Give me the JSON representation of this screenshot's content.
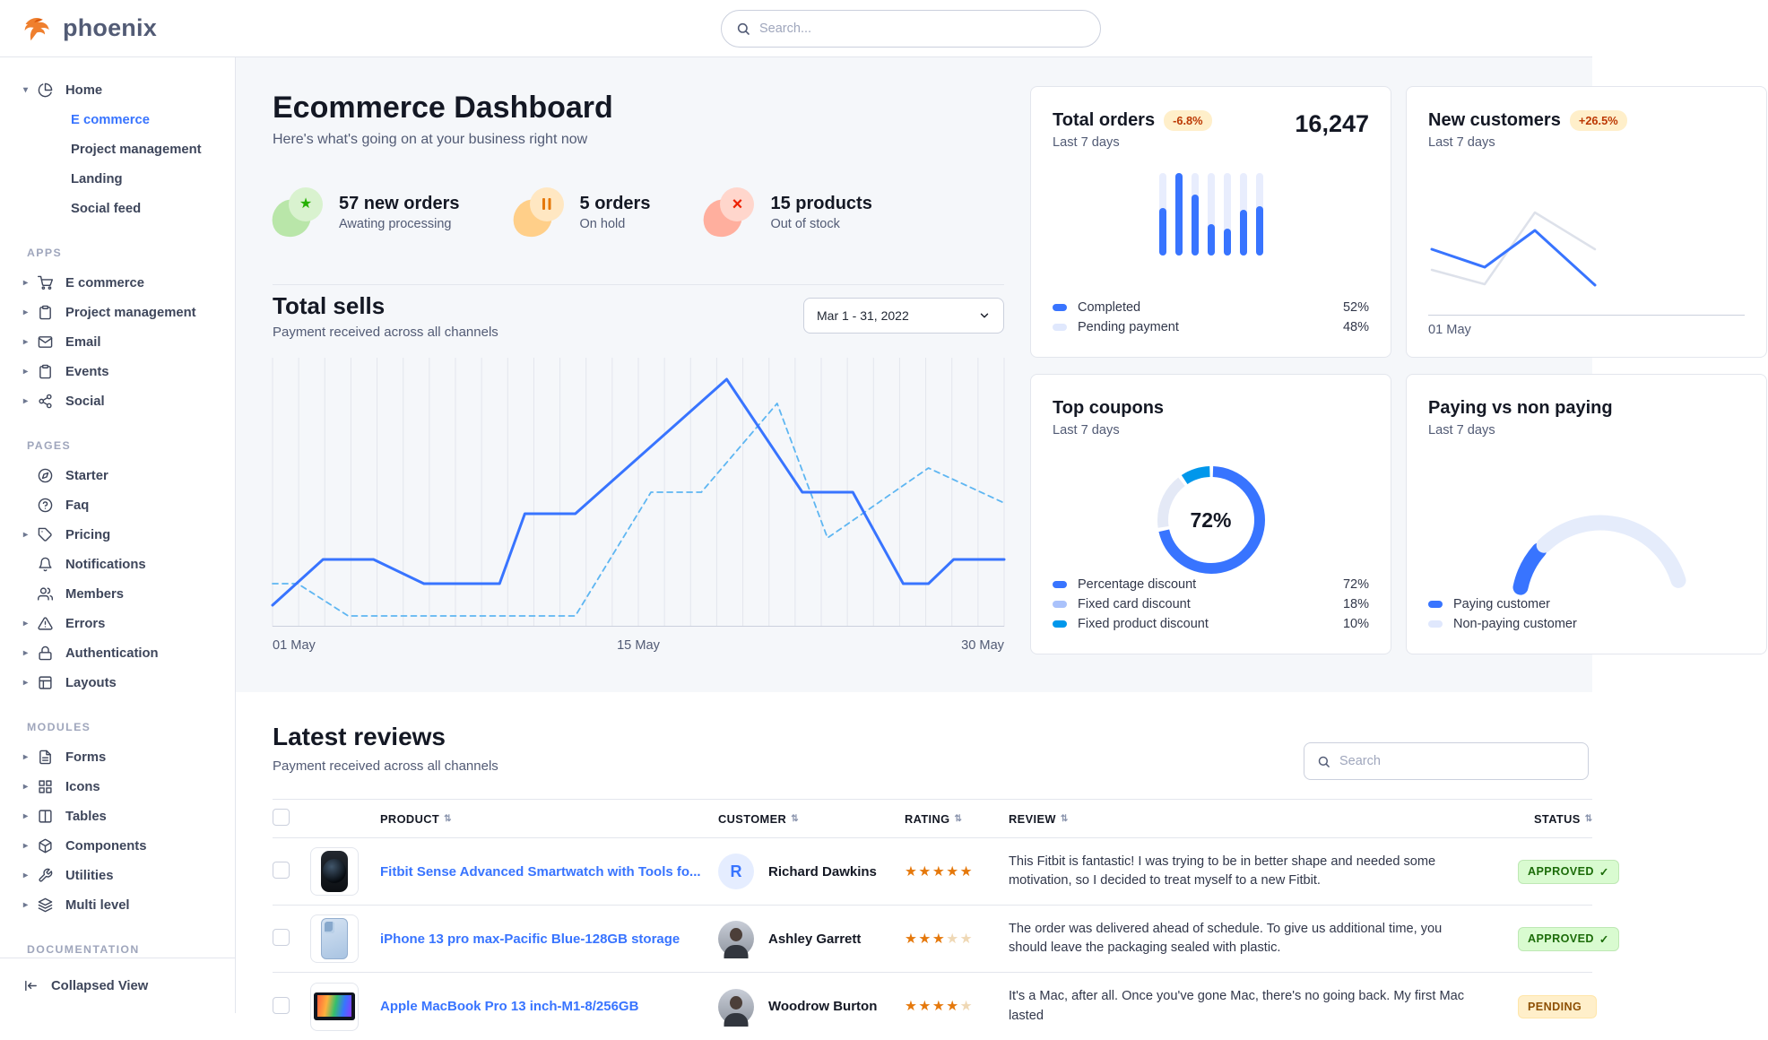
{
  "topnav": {
    "brand": "phoenix",
    "search_placeholder": "Search..."
  },
  "sidebar": {
    "home": {
      "label": "Home",
      "items": [
        {
          "label": "E commerce",
          "active": true
        },
        {
          "label": "Project management",
          "active": false
        },
        {
          "label": "Landing",
          "active": false
        },
        {
          "label": "Social feed",
          "active": false
        }
      ]
    },
    "sections": [
      {
        "title": "APPS",
        "items": [
          {
            "label": "E commerce",
            "icon": "cart-icon",
            "caret": true
          },
          {
            "label": "Project management",
            "icon": "clipboard-icon",
            "caret": true
          },
          {
            "label": "Email",
            "icon": "mail-icon",
            "caret": true
          },
          {
            "label": "Events",
            "icon": "clipboard-icon",
            "caret": true
          },
          {
            "label": "Social",
            "icon": "share-icon",
            "caret": true
          }
        ]
      },
      {
        "title": "PAGES",
        "items": [
          {
            "label": "Starter",
            "icon": "compass-icon",
            "caret": false
          },
          {
            "label": "Faq",
            "icon": "question-icon",
            "caret": false
          },
          {
            "label": "Pricing",
            "icon": "tag-icon",
            "caret": true
          },
          {
            "label": "Notifications",
            "icon": "bell-icon",
            "caret": false
          },
          {
            "label": "Members",
            "icon": "users-icon",
            "caret": false
          },
          {
            "label": "Errors",
            "icon": "alert-triangle-icon",
            "caret": true
          },
          {
            "label": "Authentication",
            "icon": "lock-icon",
            "caret": true
          },
          {
            "label": "Layouts",
            "icon": "layout-icon",
            "caret": true
          }
        ]
      },
      {
        "title": "MODULES",
        "items": [
          {
            "label": "Forms",
            "icon": "file-text-icon",
            "caret": true
          },
          {
            "label": "Icons",
            "icon": "grid-icon",
            "caret": true
          },
          {
            "label": "Tables",
            "icon": "columns-icon",
            "caret": true
          },
          {
            "label": "Components",
            "icon": "package-icon",
            "caret": true
          },
          {
            "label": "Utilities",
            "icon": "wrench-icon",
            "caret": true
          },
          {
            "label": "Multi level",
            "icon": "layers-icon",
            "caret": true
          }
        ]
      },
      {
        "title": "DOCUMENTATION",
        "items": []
      }
    ],
    "footer_label": "Collapsed View"
  },
  "page": {
    "title": "Ecommerce Dashboard",
    "subtitle": "Here's what's going on at your business right now"
  },
  "quick_stats": [
    {
      "headline": "57 new orders",
      "sub": "Awating processing",
      "tone": "success",
      "icon": "star-icon"
    },
    {
      "headline": "5 orders",
      "sub": "On hold",
      "tone": "warning",
      "icon": "pause-icon"
    },
    {
      "headline": "15 products",
      "sub": "Out of stock",
      "tone": "danger",
      "icon": "x-icon"
    }
  ],
  "total_sells": {
    "title": "Total sells",
    "subtitle": "Payment received across all channels",
    "date_range": "Mar 1 - 31, 2022",
    "chart": {
      "type": "line",
      "x_ticks": [
        "01 May",
        "15 May",
        "30 May"
      ],
      "x_range": [
        1,
        30
      ],
      "y_range": [
        0,
        100
      ],
      "series": [
        {
          "name": "current",
          "style": "solid",
          "color": "#3874ff",
          "points": [
            [
              1,
              8
            ],
            [
              3,
              25
            ],
            [
              5,
              25
            ],
            [
              7,
              16
            ],
            [
              10,
              16
            ],
            [
              11,
              42
            ],
            [
              13,
              42
            ],
            [
              19,
              92
            ],
            [
              22,
              50
            ],
            [
              24,
              50
            ],
            [
              26,
              16
            ],
            [
              27,
              16
            ],
            [
              28,
              25
            ],
            [
              30,
              25
            ]
          ]
        },
        {
          "name": "previous",
          "style": "dashed",
          "color": "#5eb6f2",
          "points": [
            [
              1,
              16
            ],
            [
              2,
              16
            ],
            [
              4,
              4
            ],
            [
              13,
              4
            ],
            [
              16,
              50
            ],
            [
              18,
              50
            ],
            [
              21,
              83
            ],
            [
              23,
              33
            ],
            [
              27,
              59
            ],
            [
              30,
              46
            ]
          ]
        }
      ]
    }
  },
  "cards": {
    "total_orders": {
      "title": "Total orders",
      "badge": "-6.8%",
      "period": "Last 7 days",
      "value": "16,247",
      "chart": {
        "type": "bar",
        "values": [
          58,
          100,
          74,
          38,
          33,
          55,
          60
        ],
        "max": 100,
        "fill_color": "#3874ff",
        "track_color": "#e8edfd"
      },
      "legend": [
        {
          "label": "Completed",
          "value": "52%",
          "color": "#3874ff"
        },
        {
          "label": "Pending payment",
          "value": "48%",
          "color": "#e0e8fd"
        }
      ]
    },
    "new_customers": {
      "title": "New customers",
      "badge": "+26.5%",
      "period": "Last 7 days",
      "x_tick": "01 May",
      "chart": {
        "type": "line",
        "series": [
          {
            "name": "current",
            "color": "#3874ff",
            "points": [
              [
                0,
                51
              ],
              [
                1,
                31
              ],
              [
                2,
                72
              ],
              [
                3,
                11
              ]
            ]
          },
          {
            "name": "previous",
            "color": "#dde1ea",
            "points": [
              [
                0,
                28
              ],
              [
                1,
                12
              ],
              [
                2,
                92
              ],
              [
                3,
                51
              ]
            ]
          }
        ]
      }
    },
    "top_coupons": {
      "title": "Top coupons",
      "period": "Last 7 days",
      "center_value": "72%",
      "chart": {
        "type": "donut",
        "slices": [
          {
            "label": "Percentage discount",
            "value": 72,
            "color": "#3874ff"
          },
          {
            "label": "Fixed card discount",
            "value": 18,
            "color": "#e4e9f6"
          },
          {
            "label": "Fixed product discount",
            "value": 10,
            "color": "#0097eb"
          }
        ]
      },
      "legend": [
        {
          "label": "Percentage discount",
          "value": "72%",
          "color": "#3874ff"
        },
        {
          "label": "Fixed card discount",
          "value": "18%",
          "color": "#aac2fb"
        },
        {
          "label": "Fixed product discount",
          "value": "10%",
          "color": "#0097eb"
        }
      ]
    },
    "paying": {
      "title": "Paying vs non paying",
      "period": "Last 7 days",
      "chart": {
        "type": "gauge",
        "segments": [
          {
            "label": "Paying customer",
            "value": 22,
            "color": "#3874ff"
          },
          {
            "label": "Non-paying customer",
            "value": 78,
            "color": "#e5ecfb"
          }
        ]
      },
      "legend": [
        {
          "label": "Paying customer",
          "color": "#3874ff"
        },
        {
          "label": "Non-paying customer",
          "color": "#e0e8fd"
        }
      ]
    }
  },
  "reviews": {
    "title": "Latest reviews",
    "subtitle": "Payment received across all channels",
    "search_placeholder": "Search",
    "columns": [
      "PRODUCT",
      "CUSTOMER",
      "RATING",
      "REVIEW",
      "STATUS"
    ],
    "rows": [
      {
        "product": "Fitbit Sense Advanced Smartwatch with Tools fo...",
        "thumb": "smartwatch",
        "customer": "Richard Dawkins",
        "avatar_type": "initial",
        "avatar_initial": "R",
        "rating": 5,
        "review": "This Fitbit is fantastic! I was trying to be in better shape and needed some motivation, so I decided to treat myself to a new Fitbit.",
        "status": "APPROVED",
        "status_tone": "success"
      },
      {
        "product": "iPhone 13 pro max-Pacific Blue-128GB storage",
        "thumb": "iphone",
        "customer": "Ashley Garrett",
        "avatar_type": "photo",
        "avatar_initial": "",
        "rating": 3,
        "review": "The order was delivered ahead of schedule. To give us additional time, you should leave the packaging sealed with plastic.",
        "status": "APPROVED",
        "status_tone": "success"
      },
      {
        "product": "Apple MacBook Pro 13 inch-M1-8/256GB",
        "thumb": "macbook",
        "customer": "Woodrow Burton",
        "avatar_type": "photo",
        "avatar_initial": "",
        "rating": 4,
        "review": "It's a Mac, after all. Once you've gone Mac, there's no going back. My first Mac lasted",
        "status": "PENDING",
        "status_tone": "warning"
      }
    ]
  }
}
